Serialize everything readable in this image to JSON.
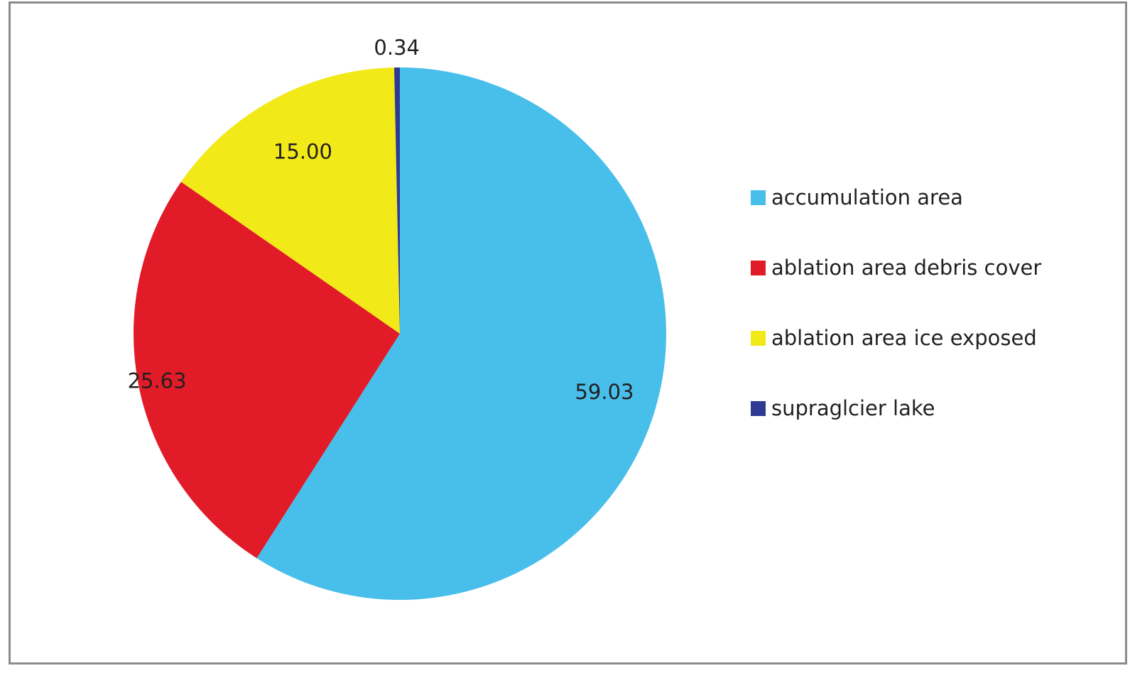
{
  "chart_data": {
    "type": "pie",
    "categories": [
      "accumulation area",
      "ablation area debris cover",
      "ablation area ice exposed",
      "supraglcier lake"
    ],
    "values": [
      59.03,
      25.63,
      15.0,
      0.34
    ],
    "data_labels": [
      "59.03",
      "25.63",
      "15.00",
      "0.34"
    ],
    "colors": [
      "#47bfea",
      "#e11c28",
      "#f2e918",
      "#2e3a92"
    ],
    "legend_position": "right",
    "start_angle": "12 o'clock, clockwise"
  }
}
